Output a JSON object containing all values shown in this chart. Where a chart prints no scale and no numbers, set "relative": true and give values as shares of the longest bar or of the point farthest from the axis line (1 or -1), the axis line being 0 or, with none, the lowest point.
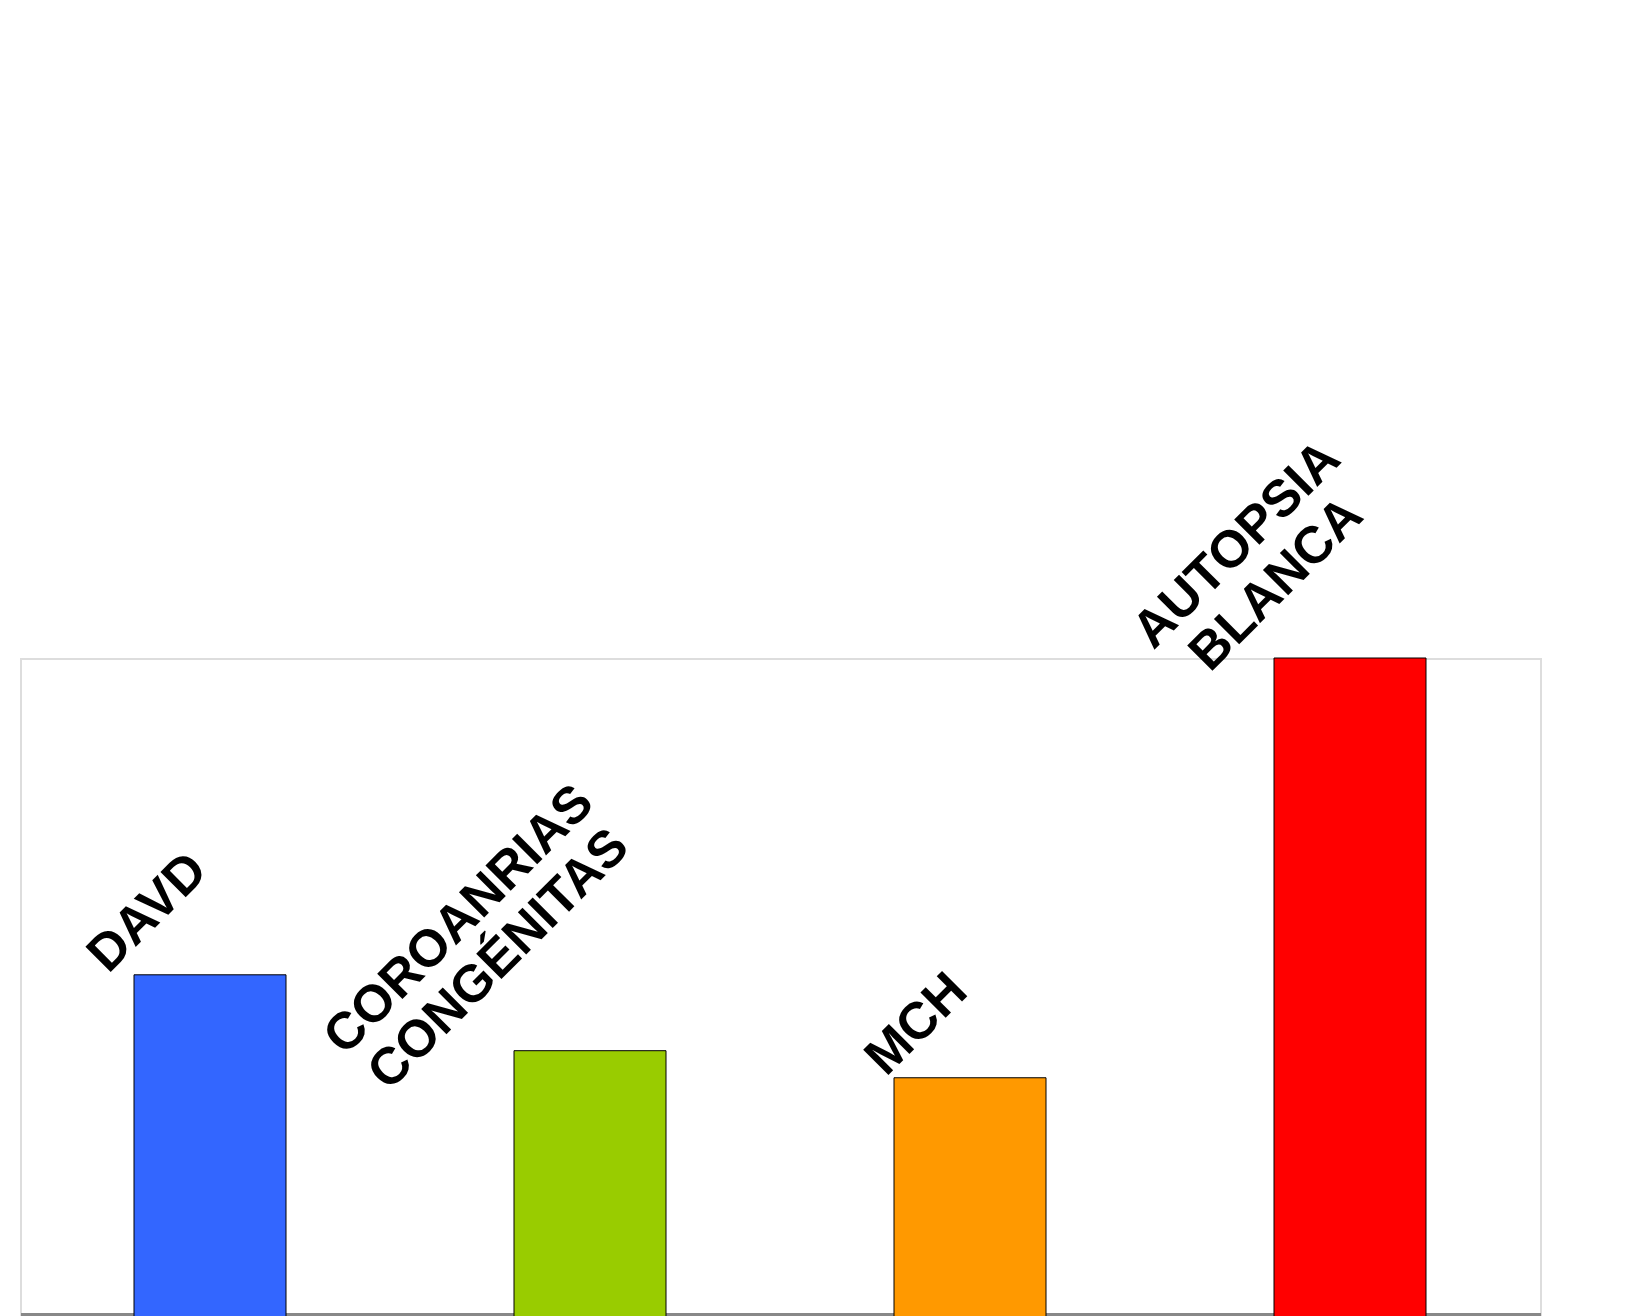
{
  "chart_data": {
    "type": "bar",
    "relative": true,
    "categories": [
      "DAVD",
      "COROANRIAS\nCONGÉNITAS",
      "MCH",
      "AUTOPSIA\nBLANCA"
    ],
    "values": [
      0.52,
      0.405,
      0.364,
      1
    ],
    "colors": [
      "#3366ff",
      "#99cc00",
      "#ff9900",
      "#ff0000"
    ],
    "grid": false,
    "legend": false
  }
}
